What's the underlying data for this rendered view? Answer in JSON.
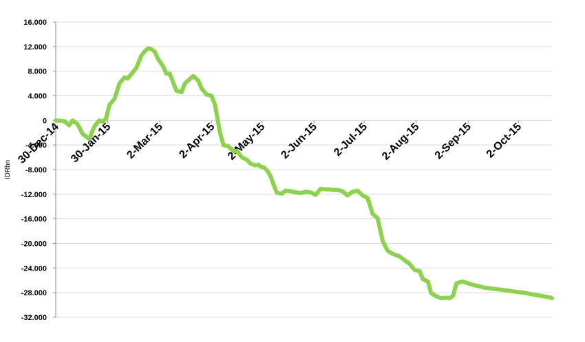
{
  "chart_data": {
    "type": "line",
    "title": "",
    "xlabel": "",
    "ylabel": "IDRbn",
    "ylim": [
      -32000,
      16000
    ],
    "y_ticks": [
      16000,
      12000,
      8000,
      4000,
      0,
      -4000,
      -8000,
      -12000,
      -16000,
      -20000,
      -24000,
      -28000,
      -32000
    ],
    "y_tick_labels": [
      "16.000",
      "12.000",
      "8.000",
      "4.000",
      "0",
      "-4.000",
      "-8.000",
      "-12.000",
      "-16.000",
      "-20.000",
      "-24.000",
      "-28.000",
      "-32.000"
    ],
    "x_range": [
      "2014-12-30",
      "2015-10-22"
    ],
    "x_ticks": [
      "2014-12-30",
      "2015-01-30",
      "2015-03-02",
      "2015-04-02",
      "2015-05-02",
      "2015-06-02",
      "2015-07-02",
      "2015-08-02",
      "2015-09-02",
      "2015-10-02"
    ],
    "x_tick_labels": [
      "30-Dec-14",
      "30-Jan-15",
      "2-Mar-15",
      "2-Apr-15",
      "2-May-15",
      "2-Jun-15",
      "2-Jul-15",
      "2-Aug-15",
      "2-Sep-15",
      "2-Oct-15"
    ],
    "grid": true,
    "legend": "none",
    "series": [
      {
        "color": "#8cd24e",
        "x": [
          "2014-12-30",
          "2015-01-04",
          "2015-01-07",
          "2015-01-09",
          "2015-01-12",
          "2015-01-15",
          "2015-01-19",
          "2015-01-22",
          "2015-01-25",
          "2015-01-27",
          "2015-01-29",
          "2015-01-31",
          "2015-02-03",
          "2015-02-06",
          "2015-02-09",
          "2015-02-11",
          "2015-02-13",
          "2015-02-16",
          "2015-02-19",
          "2015-02-21",
          "2015-02-23",
          "2015-02-25",
          "2015-02-27",
          "2015-03-01",
          "2015-03-04",
          "2015-03-06",
          "2015-03-08",
          "2015-03-10",
          "2015-03-12",
          "2015-03-15",
          "2015-03-17",
          "2015-03-19",
          "2015-03-22",
          "2015-03-25",
          "2015-03-27",
          "2015-03-30",
          "2015-04-02",
          "2015-04-04",
          "2015-04-07",
          "2015-04-09",
          "2015-04-12",
          "2015-04-15",
          "2015-04-17",
          "2015-04-20",
          "2015-04-23",
          "2015-04-25",
          "2015-04-28",
          "2015-04-30",
          "2015-05-01",
          "2015-05-03",
          "2015-05-05",
          "2015-05-07",
          "2015-05-09",
          "2015-05-11",
          "2015-05-14",
          "2015-05-16",
          "2015-05-19",
          "2015-05-22",
          "2015-05-25",
          "2015-05-28",
          "2015-05-31",
          "2015-06-03",
          "2015-06-06",
          "2015-06-09",
          "2015-06-11",
          "2015-06-13",
          "2015-06-16",
          "2015-06-19",
          "2015-06-22",
          "2015-06-25",
          "2015-06-28",
          "2015-07-01",
          "2015-07-04",
          "2015-07-07",
          "2015-07-10",
          "2015-07-13",
          "2015-07-16",
          "2015-07-19",
          "2015-07-20",
          "2015-07-23",
          "2015-07-26",
          "2015-07-29",
          "2015-08-01",
          "2015-08-04",
          "2015-08-06",
          "2015-08-09",
          "2015-08-11",
          "2015-08-14",
          "2015-08-17",
          "2015-08-20",
          "2015-08-22",
          "2015-08-24",
          "2015-08-26",
          "2015-08-28",
          "2015-08-30",
          "2015-09-01",
          "2015-09-03",
          "2015-09-06",
          "2015-09-09",
          "2015-09-12",
          "2015-09-15",
          "2015-09-18",
          "2015-09-21",
          "2015-09-24",
          "2015-09-27",
          "2015-09-29",
          "2015-10-02",
          "2015-10-05",
          "2015-10-07",
          "2015-10-09",
          "2015-10-11",
          "2015-10-13",
          "2015-10-15",
          "2015-10-17",
          "2015-10-19",
          "2015-10-21",
          "2015-10-22"
        ],
        "y": [
          0,
          -100,
          -800,
          0,
          -600,
          -2200,
          -3000,
          -1000,
          0,
          -200,
          300,
          2500,
          3500,
          6000,
          7000,
          6800,
          7500,
          8500,
          10500,
          11200,
          11700,
          11600,
          11200,
          10000,
          8800,
          7600,
          7600,
          6200,
          4800,
          4600,
          6000,
          6500,
          7200,
          6500,
          5200,
          4200,
          4000,
          2500,
          -2000,
          -4000,
          -4200,
          -5000,
          -5000,
          -6000,
          -6400,
          -7000,
          -7300,
          -7200,
          -7500,
          -7600,
          -8100,
          -9000,
          -10500,
          -11800,
          -11900,
          -11400,
          -11500,
          -11700,
          -11800,
          -11600,
          -11700,
          -12100,
          -11100,
          -11200,
          -11200,
          -11300,
          -11300,
          -11500,
          -12200,
          -11600,
          -11400,
          -12200,
          -12600,
          -15200,
          -15900,
          -19600,
          -21200,
          -21700,
          -21800,
          -22100,
          -22700,
          -23300,
          -24300,
          -24500,
          -25800,
          -26200,
          -28100,
          -28600,
          -28900,
          -28800,
          -28900,
          -28500,
          -26500,
          -26300,
          -26200,
          -26400,
          -26600,
          -26800,
          -27000,
          -27200,
          -27300,
          -27400,
          -27500,
          -27600,
          -27700,
          -27800,
          -27900,
          -28000,
          -28100,
          -28200,
          -28300,
          -28400,
          -28500,
          -28600,
          -28700,
          -28800,
          -28900
        ]
      }
    ]
  }
}
